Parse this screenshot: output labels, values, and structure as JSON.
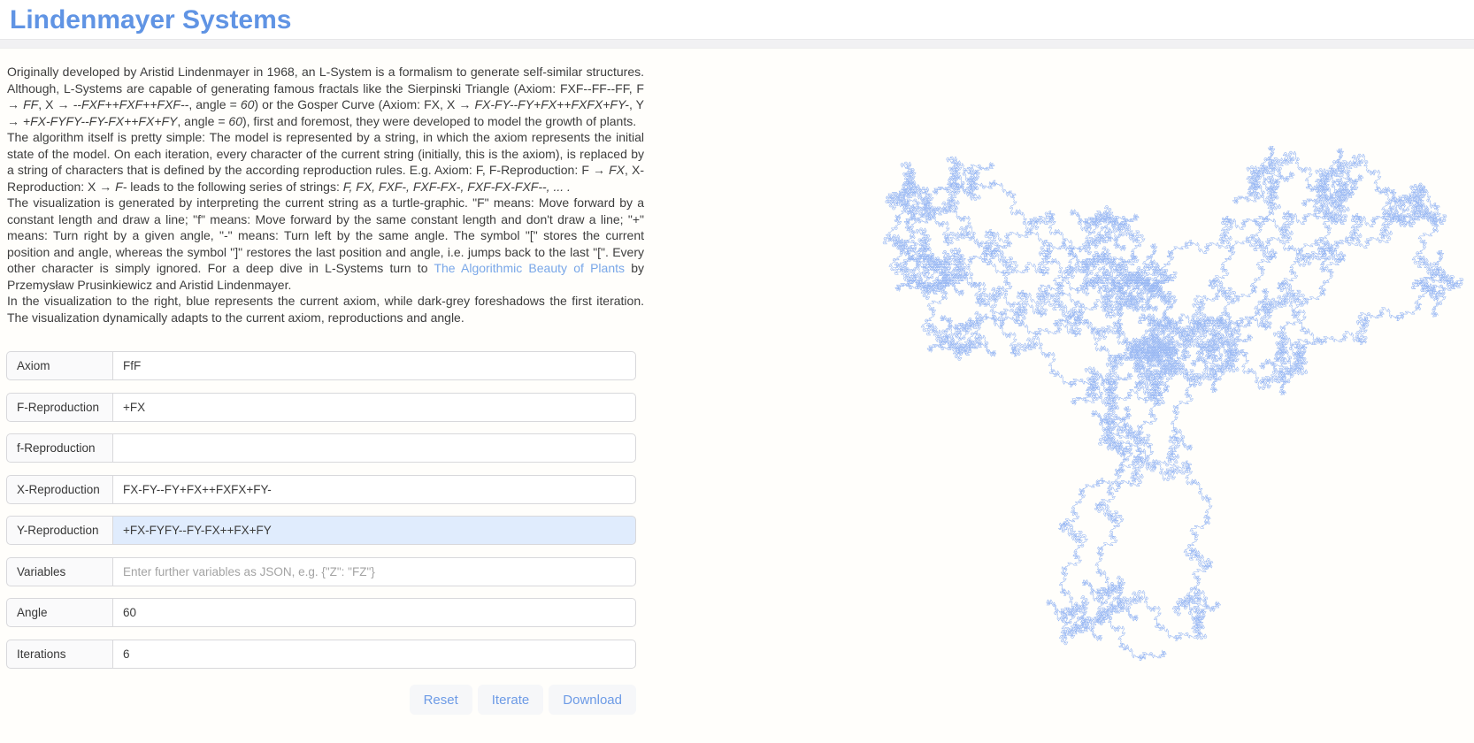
{
  "header": {
    "title": "Lindenmayer Systems"
  },
  "colors": {
    "accent_blue": "#6094e4",
    "link_blue": "#79a7e8",
    "fractal_stroke": "#5b8def",
    "highlight_input_bg": "#e0ecfd",
    "button_bg": "#f6f7f9"
  },
  "intro": {
    "paragraphs": [
      [
        {
          "t": "Originally developed by Aristid Lindenmayer in 1968, an L-System is a formalism to generate self-similar structures. Although, L-Systems are capable of generating famous fractals like the Sierpinski Triangle (Axiom: FXF--FF--FF, F → "
        },
        {
          "t": "FF",
          "i": true
        },
        {
          "t": ", X → "
        },
        {
          "t": "--FXF++FXF++FXF--",
          "i": true
        },
        {
          "t": ", angle = "
        },
        {
          "t": "60",
          "i": true
        },
        {
          "t": ") or the Gosper Curve (Axiom: FX, X → "
        },
        {
          "t": "FX-FY--FY+FX++FXFX+FY-",
          "i": true
        },
        {
          "t": ", Y → "
        },
        {
          "t": "+FX-FYFY--FY-FX++FX+FY",
          "i": true
        },
        {
          "t": ", angle = "
        },
        {
          "t": "60",
          "i": true
        },
        {
          "t": "), first and foremost, they were developed to model the growth of plants."
        }
      ],
      [
        {
          "t": "The algorithm itself is pretty simple: The model is represented by a string, in which the axiom represents the initial state of the model. On each iteration, every character of the current string (initially, this is the axiom), is replaced by a string of characters that is defined by the according reproduction rules. E.g. Axiom: F, F-Reproduction: F → "
        },
        {
          "t": "FX",
          "i": true
        },
        {
          "t": ", X-Reproduction: X → "
        },
        {
          "t": "F-",
          "i": true
        },
        {
          "t": " leads to the following series of strings: "
        },
        {
          "t": "F, FX, FXF-, FXF-FX-, FXF-FX-FXF--, ... .",
          "i": true
        }
      ],
      [
        {
          "t": "The visualization is generated by interpreting the current string as a turtle-graphic. \"F\" means: Move forward by a constant length and draw a line; \"f\" means: Move forward by the same constant length and don't draw a line; \"+\" means: Turn right by a given angle, \"-\" means: Turn left by the same angle. The symbol \"[\" stores the current position and angle, whereas the symbol \"]\" restores the last position and angle, i.e. jumps back to the last \"[\". Every other character is simply ignored. For a deep dive in L-Systems turn to "
        },
        {
          "t": "The Algorithmic Beauty of Plants",
          "link": true
        },
        {
          "t": " by Przemysław Prusinkiewicz and Aristid Lindenmayer."
        }
      ],
      [
        {
          "t": "In the visualization to the right, blue represents the current axiom, while dark-grey foreshadows the first iteration. The visualization dynamically adapts to the current axiom, reproductions and angle."
        }
      ]
    ]
  },
  "form": {
    "rows": [
      {
        "id": "axiom",
        "label": "Axiom",
        "value": "FfF"
      },
      {
        "id": "f-upper-reproduction",
        "label": "F-Reproduction",
        "value": "+FX"
      },
      {
        "id": "f-lower-reproduction",
        "label": "f-Reproduction",
        "value": ""
      },
      {
        "id": "x-reproduction",
        "label": "X-Reproduction",
        "value": "FX-FY--FY+FX++FXFX+FY-"
      },
      {
        "id": "y-reproduction",
        "label": "Y-Reproduction",
        "value": "+FX-FYFY--FY-FX++FX+FY",
        "highlight": true
      },
      {
        "id": "variables",
        "label": "Variables",
        "value": "",
        "placeholder": "Enter further variables as JSON, e.g. {\"Z\": \"FZ\"}"
      },
      {
        "id": "angle",
        "label": "Angle",
        "value": "60"
      },
      {
        "id": "iterations",
        "label": "Iterations",
        "value": "6"
      }
    ],
    "buttons": [
      {
        "id": "reset",
        "label": "Reset"
      },
      {
        "id": "iterate",
        "label": "Iterate"
      },
      {
        "id": "download",
        "label": "Download"
      }
    ]
  },
  "visualization": {
    "type": "lsystem-turtle",
    "axiom": "FfF",
    "rules": {
      "F": "+FX",
      "X": "FX-FY--FY+FX++FXFX+FY-",
      "Y": "+FX-FYFY--FY-FX++FX+FY"
    },
    "angle": 60,
    "iterations": 6,
    "stroke_color": "#5b8def",
    "current_string_color_label": "blue",
    "first_iteration_color_label": "dark-grey"
  }
}
